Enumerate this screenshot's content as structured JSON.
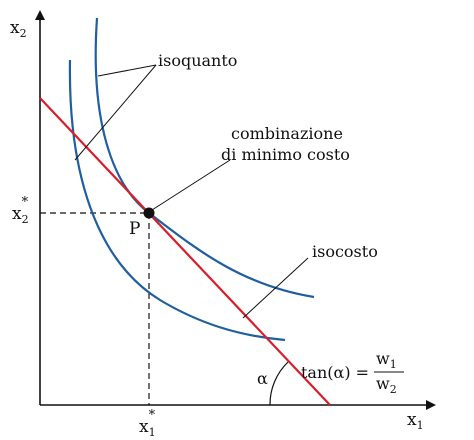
{
  "axes": {
    "y_label": "x",
    "y_label_sub": "2",
    "x_label": "x",
    "x_label_sub": "1"
  },
  "ticks": {
    "x_star_base": "x",
    "x_star_sub": "1",
    "x_star_sup": "*",
    "y_star_base": "x",
    "y_star_sub": "2",
    "y_star_sup": "*"
  },
  "labels": {
    "isoquanto": "isoquanto",
    "combination_line1": "combinazione",
    "combination_line2": "di minimo costo",
    "point": "P",
    "isocosto": "isocosto",
    "alpha": "α",
    "tan_expr": "tan(α) =",
    "w_num": "w",
    "w_num_sub": "1",
    "w_den": "w",
    "w_den_sub": "2"
  },
  "colors": {
    "axis": "#111111",
    "isoquant": "#1f5fa0",
    "isocost": "#d81e2a",
    "guide": "#111111"
  }
}
